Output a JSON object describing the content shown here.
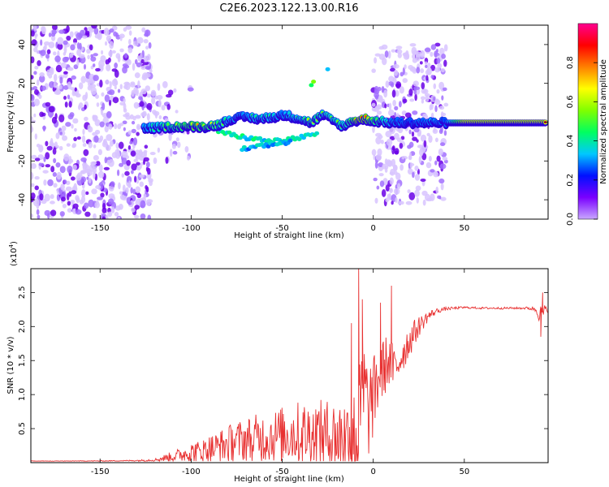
{
  "figure_title": "C2E6.2023.122.13.00.R16",
  "chart_data": [
    {
      "type": "heatmap",
      "title": "",
      "xlabel": "Height of straight line (km)",
      "ylabel": "Frequency (Hz)",
      "xlim": [
        -188,
        96
      ],
      "ylim": [
        -50,
        50
      ],
      "x_ticks": [
        -150,
        -100,
        -50,
        0,
        50
      ],
      "y_ticks": [
        -40,
        -20,
        0,
        20,
        40
      ],
      "grid": false,
      "colorbar": {
        "label": "Normalized spectral amplitude",
        "range": [
          0,
          1
        ],
        "ticks": [
          0.0,
          0.2,
          0.4,
          0.6,
          0.8
        ],
        "colormap": [
          "#c8a8ff",
          "#7a00ff",
          "#0010ff",
          "#00c8ff",
          "#00ff60",
          "#80ff00",
          "#ffff00",
          "#ff8000",
          "#ff0000",
          "#ff0090"
        ]
      },
      "regions": [
        {
          "x_range": [
            -188,
            -122
          ],
          "f_range": [
            -50,
            50
          ],
          "amplitude": "low, broadband noise"
        },
        {
          "x_range": [
            -122,
            -100
          ],
          "f_range": [
            -20,
            20
          ],
          "amplitude": "weak speckle"
        },
        {
          "x_range": [
            0,
            40
          ],
          "f_range": [
            -42,
            40
          ],
          "amplitude": "low, broadband noise"
        }
      ],
      "ridge": {
        "x": [
          -126,
          -110,
          -100,
          -92,
          -85,
          -78,
          -70,
          -62,
          -55,
          -48,
          -40,
          -34,
          -28,
          -22,
          -16,
          -12,
          -8,
          -5,
          0,
          10,
          20,
          30,
          40,
          50,
          60,
          70,
          80,
          90,
          95
        ],
        "f": [
          -3,
          -2,
          -2,
          -2,
          -1,
          2,
          3,
          2,
          3,
          4,
          2,
          0,
          4,
          1,
          -2,
          1,
          1,
          2,
          1,
          0,
          0,
          0,
          0,
          0,
          0,
          0,
          0,
          0,
          0
        ],
        "amplitude": [
          0.35,
          0.55,
          0.7,
          0.65,
          0.5,
          0.4,
          0.35,
          0.45,
          0.4,
          0.35,
          0.45,
          0.55,
          0.45,
          0.5,
          0.45,
          0.6,
          0.9,
          0.85,
          0.6,
          0.35,
          0.3,
          0.35,
          0.3,
          0.95,
          0.95,
          0.95,
          0.95,
          0.95,
          0.95
        ]
      },
      "side_branches": [
        {
          "x": [
            -85,
            -70,
            -55,
            -40,
            -30
          ],
          "f": [
            -5,
            -8,
            -10,
            -8,
            -6
          ],
          "amplitude": 0.3
        },
        {
          "x": [
            -72,
            -58,
            -45
          ],
          "f": [
            -14,
            -12,
            -10
          ],
          "amplitude": 0.25
        },
        {
          "x": [
            -34,
            -33,
            -32
          ],
          "f": [
            19,
            21,
            22
          ],
          "amplitude": 0.4
        },
        {
          "x": [
            -25,
            -24
          ],
          "f": [
            28,
            30
          ],
          "amplitude": 0.2
        }
      ]
    },
    {
      "type": "line",
      "title": "",
      "xlabel": "Height of straight line (km)",
      "ylabel": "SNR (10 * v/v)",
      "y_multiplier_label": "(x10",
      "y_multiplier_exponent": "4",
      "y_multiplier_suffix": ")",
      "xlim": [
        -188,
        96
      ],
      "ylim": [
        0,
        28500
      ],
      "x_ticks": [
        -150,
        -100,
        -50,
        0,
        50
      ],
      "y_ticks": [
        5000,
        10000,
        15000,
        20000,
        25000
      ],
      "y_tick_labels": [
        "0.5",
        "1.0",
        "1.5",
        "2.0",
        "2.5"
      ],
      "grid": false,
      "series": [
        {
          "color": "#e83030",
          "x": [
            -188,
            -150,
            -130,
            -120,
            -112,
            -105,
            -100,
            -95,
            -90,
            -85,
            -80,
            -75,
            -70,
            -65,
            -60,
            -55,
            -50,
            -45,
            -40,
            -35,
            -30,
            -25,
            -20,
            -15,
            -10,
            -8,
            -6,
            -5,
            -3,
            0,
            3,
            6,
            8,
            10,
            12,
            15,
            20,
            25,
            30,
            35,
            40,
            45,
            50,
            60,
            70,
            80,
            85,
            88,
            90,
            92,
            93,
            94,
            96
          ],
          "values": [
            200,
            250,
            300,
            400,
            800,
            1200,
            1500,
            1600,
            2000,
            2300,
            2700,
            3100,
            3400,
            3600,
            3700,
            3900,
            4100,
            4300,
            4300,
            4200,
            4000,
            3800,
            3500,
            3500,
            3200,
            5000,
            9000,
            11000,
            7500,
            9500,
            12500,
            14000,
            15000,
            14500,
            13500,
            15500,
            18000,
            20000,
            21500,
            22300,
            22600,
            22700,
            22800,
            22700,
            22700,
            22700,
            22700,
            22600,
            22500,
            21500,
            22000,
            22300,
            22500
          ],
          "noise_amplitude": [
            50,
            50,
            100,
            200,
            700,
            1100,
            1500,
            1700,
            2100,
            2400,
            2800,
            3000,
            3300,
            3500,
            3700,
            3900,
            4200,
            4500,
            4800,
            5000,
            5200,
            5600,
            6000,
            6500,
            8000,
            9000,
            8500,
            8000,
            7500,
            6000,
            5000,
            4500,
            4000,
            3500,
            3500,
            3000,
            2500,
            1500,
            800,
            400,
            250,
            200,
            150,
            150,
            150,
            150,
            200,
            400,
            800,
            1800,
            1500,
            900,
            400
          ]
        }
      ],
      "peaks": [
        {
          "x": -8,
          "value": 28500
        },
        {
          "x": -6,
          "value": 24000
        },
        {
          "x": -12,
          "value": 20500
        },
        {
          "x": 10,
          "value": 26000
        },
        {
          "x": 4,
          "value": 23500
        },
        {
          "x": 92,
          "value": 18500
        },
        {
          "x": 93,
          "value": 25000
        }
      ]
    }
  ]
}
